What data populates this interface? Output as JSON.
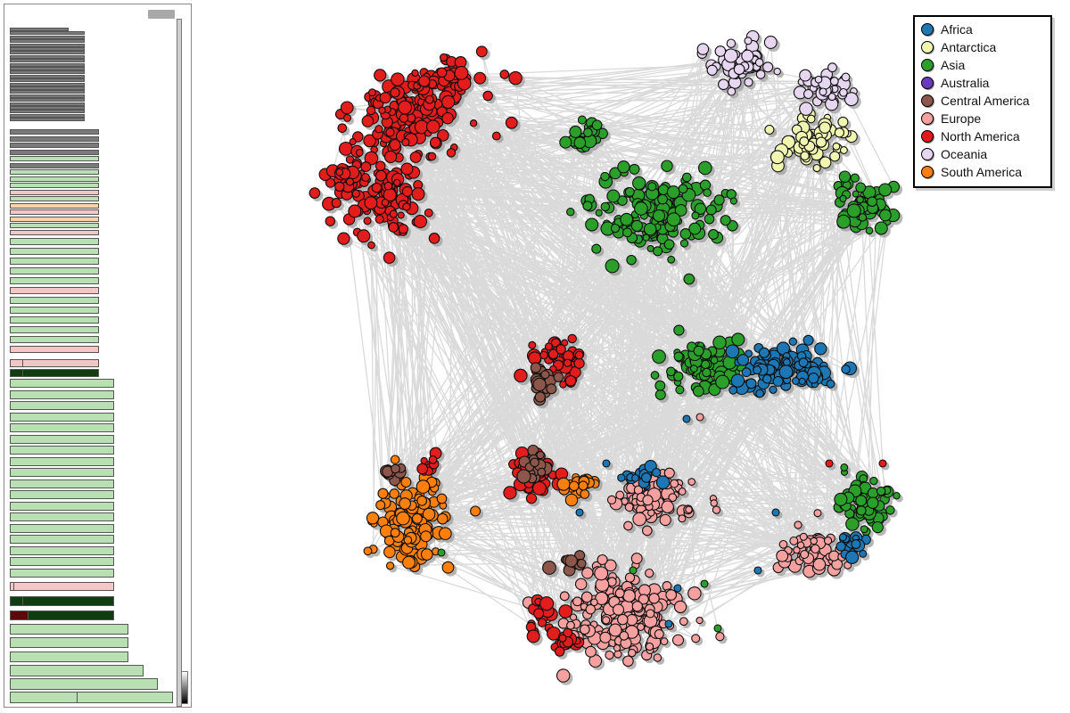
{
  "legend": {
    "items": [
      {
        "label": "Africa",
        "color": "#1f77b4"
      },
      {
        "label": "Antarctica",
        "color": "#f0f5b0"
      },
      {
        "label": "Asia",
        "color": "#2ca02c"
      },
      {
        "label": "Australia",
        "color": "#6a3ac0"
      },
      {
        "label": "Central America",
        "color": "#8c564b"
      },
      {
        "label": "Europe",
        "color": "#f7a0a0"
      },
      {
        "label": "North America",
        "color": "#e31a1c"
      },
      {
        "label": "Oceania",
        "color": "#e6d6f0"
      },
      {
        "label": "South America",
        "color": "#ff7f0e"
      }
    ]
  },
  "colors": {
    "edge": "#555555",
    "bar_gray": "#7a7a7a",
    "bar_green": "#b9e0b3",
    "bar_pink": "#f5c6c6",
    "bar_orange": "#fad2a8",
    "bar_dark_green": "#0f3d10",
    "bar_dark_red": "#5a0a0a"
  }
}
